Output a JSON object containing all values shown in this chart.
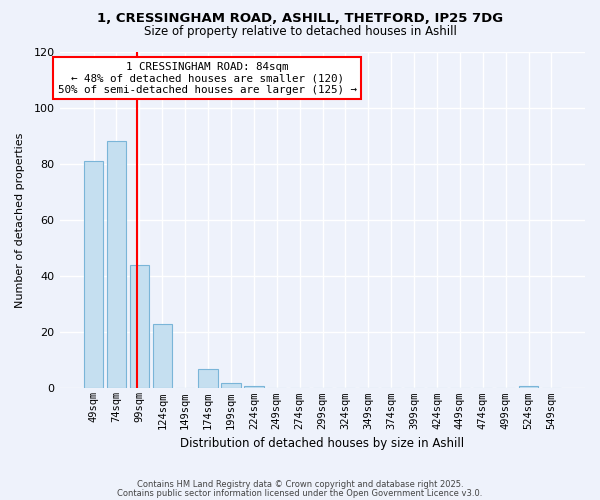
{
  "title1": "1, CRESSINGHAM ROAD, ASHILL, THETFORD, IP25 7DG",
  "title2": "Size of property relative to detached houses in Ashill",
  "xlabel": "Distribution of detached houses by size in Ashill",
  "ylabel": "Number of detached properties",
  "categories": [
    "49sqm",
    "74sqm",
    "99sqm",
    "124sqm",
    "149sqm",
    "174sqm",
    "199sqm",
    "224sqm",
    "249sqm",
    "274sqm",
    "299sqm",
    "324sqm",
    "349sqm",
    "374sqm",
    "399sqm",
    "424sqm",
    "449sqm",
    "474sqm",
    "499sqm",
    "524sqm",
    "549sqm"
  ],
  "values": [
    81,
    88,
    44,
    23,
    0,
    7,
    2,
    1,
    0,
    0,
    0,
    0,
    0,
    0,
    0,
    0,
    0,
    0,
    0,
    1,
    0
  ],
  "bar_color": "#c5dff0",
  "bar_edge_color": "#7ab5d8",
  "vline_x": 1.9,
  "vline_color": "red",
  "annotation_title": "1 CRESSINGHAM ROAD: 84sqm",
  "annotation_line2": "← 48% of detached houses are smaller (120)",
  "annotation_line3": "50% of semi-detached houses are larger (125) →",
  "annotation_box_color": "white",
  "annotation_box_edge_color": "red",
  "ylim": [
    0,
    120
  ],
  "yticks": [
    0,
    20,
    40,
    60,
    80,
    100,
    120
  ],
  "footnote1": "Contains HM Land Registry data © Crown copyright and database right 2025.",
  "footnote2": "Contains public sector information licensed under the Open Government Licence v3.0.",
  "bg_color": "#eef2fb"
}
